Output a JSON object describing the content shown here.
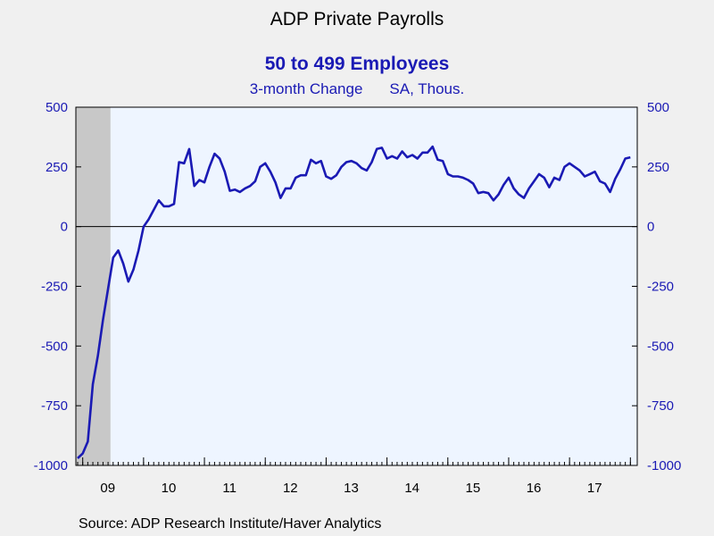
{
  "header": {
    "title": "ADP Private Payrolls",
    "subtitle": "50 to 499 Employees",
    "units_left": "3-month Change",
    "units_right": "SA, Thous."
  },
  "source": "Source:  ADP Research Institute/Haver Analytics",
  "colors": {
    "background": "#f0f0f0",
    "plot_bg": "#eef5ff",
    "line": "#1a1ab4",
    "recession": "#c8c8c8",
    "axis_text": "#1a1ab4"
  },
  "chart_data": {
    "type": "line",
    "x_start": "2008-12",
    "frequency": "monthly",
    "ylim": [
      -1000,
      500
    ],
    "yticks": [
      500,
      250,
      0,
      -250,
      -500,
      -750,
      -1000
    ],
    "ytick_labels": [
      "500",
      "250",
      "0",
      "-250",
      "-500",
      "-750",
      "-1000"
    ],
    "xtick_labels": [
      "09",
      "10",
      "11",
      "12",
      "13",
      "14",
      "15",
      "16",
      "17"
    ],
    "zero_line": true,
    "secondary_axis_mirrored": true,
    "recession_shading": {
      "start": "2008-12",
      "end": "2009-06"
    },
    "series": [
      {
        "values": [
          -970,
          -950,
          -900,
          -660,
          -540,
          -390,
          -260,
          -130,
          -100,
          -155,
          -230,
          -180,
          -100,
          0,
          30,
          70,
          110,
          85,
          85,
          95,
          270,
          265,
          325,
          170,
          195,
          185,
          250,
          305,
          285,
          230,
          150,
          155,
          145,
          160,
          170,
          190,
          250,
          265,
          230,
          185,
          120,
          160,
          160,
          205,
          215,
          215,
          280,
          265,
          275,
          210,
          200,
          215,
          250,
          270,
          275,
          265,
          245,
          235,
          270,
          325,
          330,
          285,
          295,
          285,
          315,
          290,
          300,
          285,
          310,
          310,
          335,
          280,
          275,
          220,
          210,
          210,
          205,
          195,
          180,
          140,
          145,
          140,
          110,
          135,
          175,
          205,
          160,
          135,
          120,
          160,
          190,
          220,
          205,
          165,
          205,
          195,
          250,
          265,
          250,
          235,
          210,
          220,
          230,
          190,
          180,
          145,
          200,
          240,
          285,
          290
        ]
      }
    ]
  }
}
